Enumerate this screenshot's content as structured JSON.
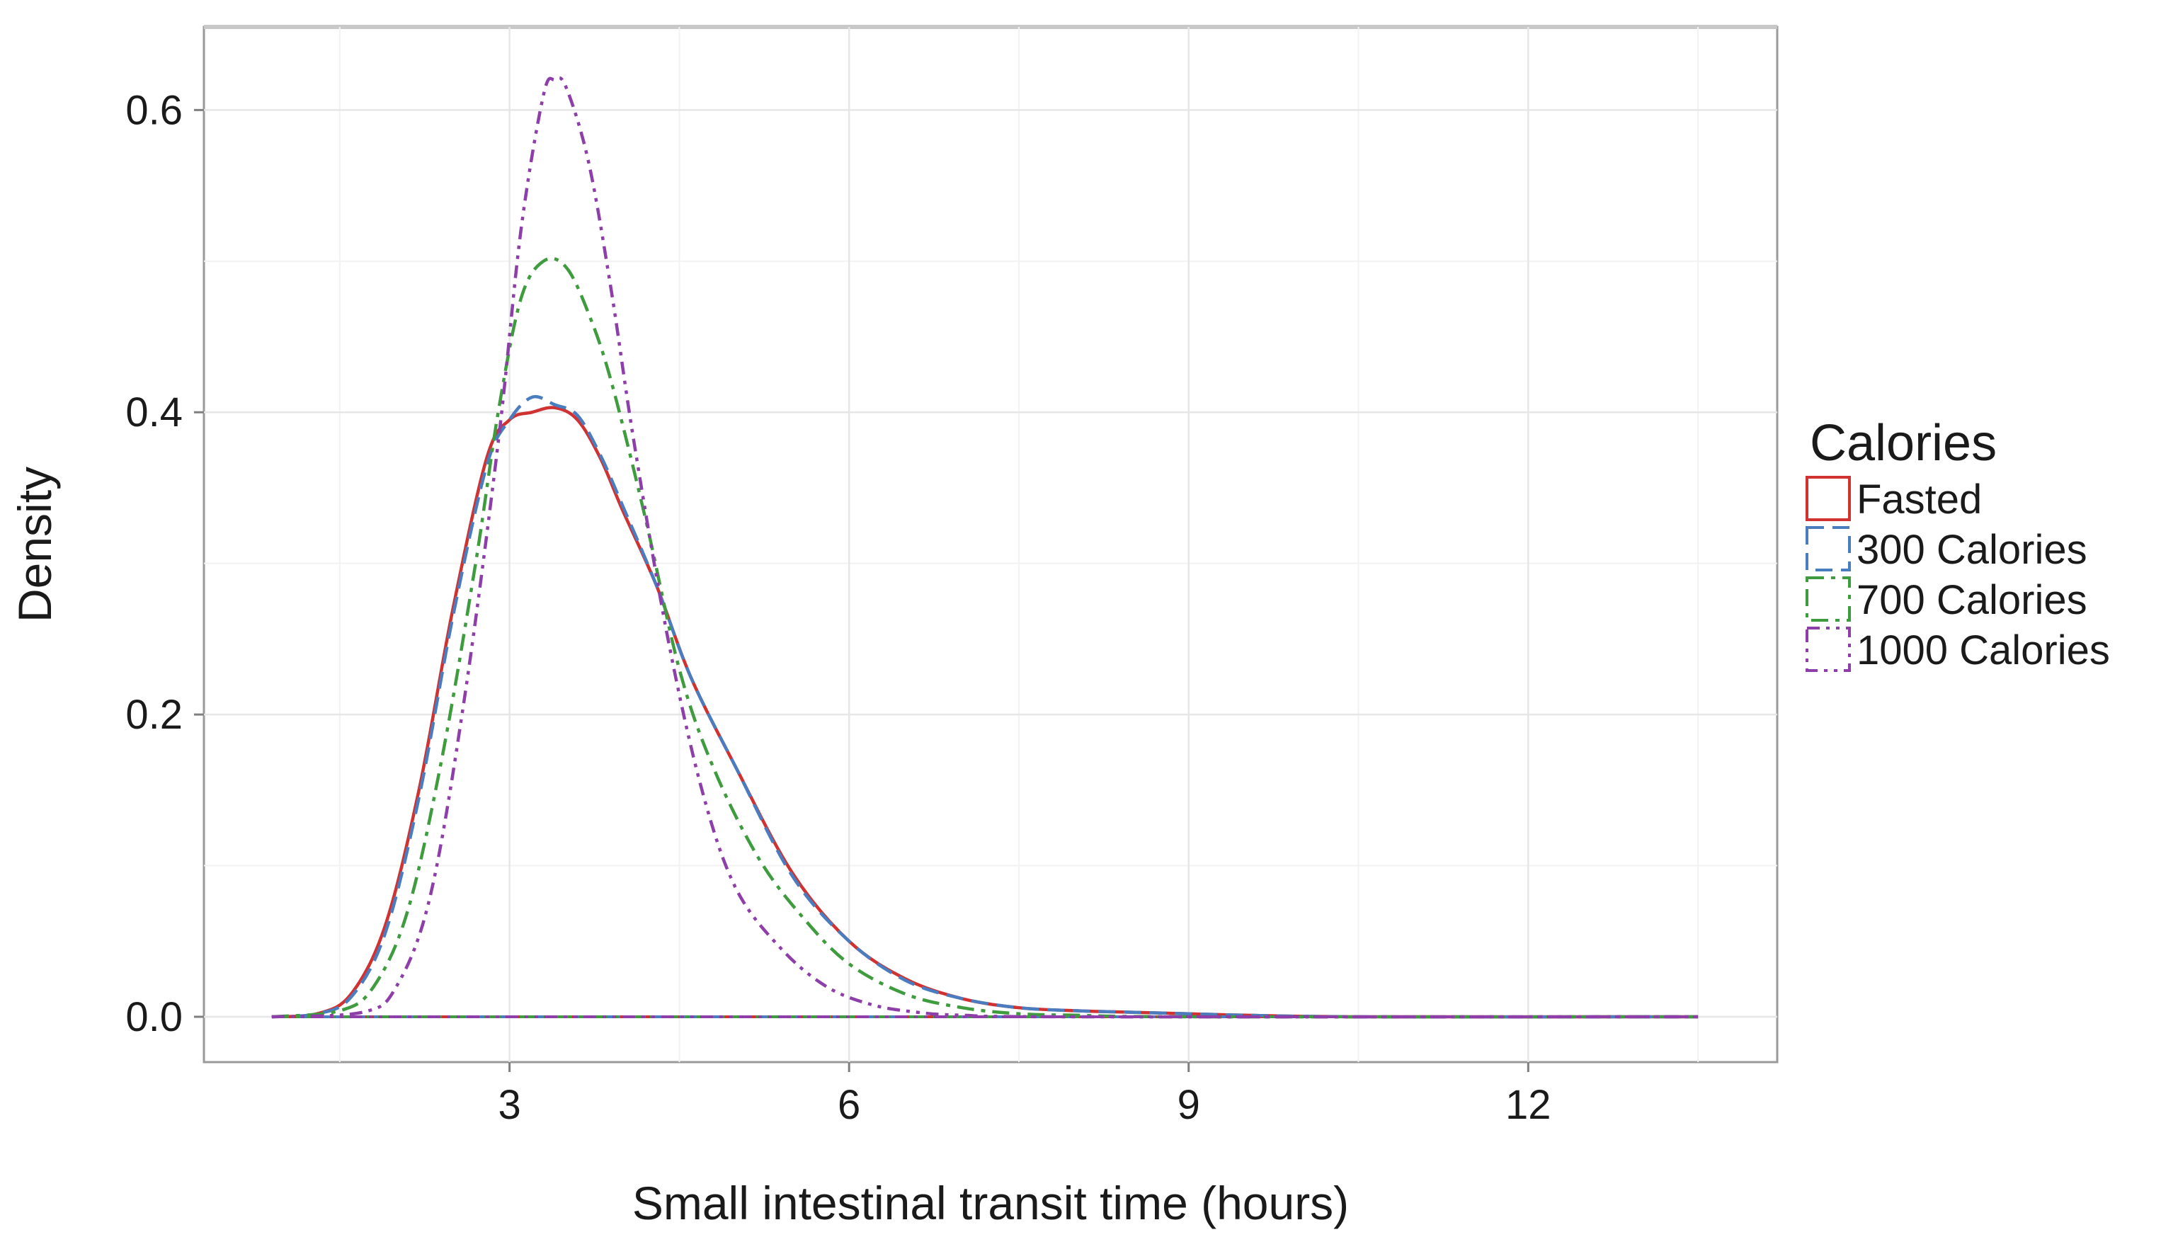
{
  "chart_data": {
    "type": "line",
    "title": "",
    "xlabel": "Small intestinal transit time (hours)",
    "ylabel": "Density",
    "xlim": [
      0.3,
      14.2
    ],
    "ylim": [
      -0.03,
      0.655
    ],
    "x_ticks": [
      3,
      6,
      9,
      12
    ],
    "x_tick_labels": [
      "3",
      "6",
      "9",
      "12"
    ],
    "y_ticks": [
      0.0,
      0.2,
      0.4,
      0.6
    ],
    "y_tick_labels": [
      "0.0",
      "0.2",
      "0.4",
      "0.6"
    ],
    "grid": true,
    "legend": {
      "title": "Calories",
      "position": "right"
    },
    "series": [
      {
        "name": "Fasted",
        "color": "#d03232",
        "dash": "solid",
        "points": [
          [
            0.9,
            0
          ],
          [
            1.3,
            0.002
          ],
          [
            1.6,
            0.015
          ],
          [
            1.9,
            0.06
          ],
          [
            2.2,
            0.15
          ],
          [
            2.5,
            0.27
          ],
          [
            2.8,
            0.37
          ],
          [
            3.0,
            0.395
          ],
          [
            3.2,
            0.4
          ],
          [
            3.4,
            0.403
          ],
          [
            3.6,
            0.395
          ],
          [
            3.8,
            0.37
          ],
          [
            4.0,
            0.335
          ],
          [
            4.3,
            0.285
          ],
          [
            4.6,
            0.225
          ],
          [
            5.0,
            0.165
          ],
          [
            5.5,
            0.095
          ],
          [
            6.0,
            0.05
          ],
          [
            6.5,
            0.025
          ],
          [
            7.0,
            0.012
          ],
          [
            7.5,
            0.006
          ],
          [
            8.0,
            0.004
          ],
          [
            8.5,
            0.003
          ],
          [
            9.0,
            0.002
          ],
          [
            9.5,
            0.001
          ],
          [
            10.5,
            0.0
          ],
          [
            13.5,
            0.0
          ]
        ]
      },
      {
        "name": "300 Calories",
        "color": "#4a7cc0",
        "dash": "long-dash",
        "points": [
          [
            0.9,
            0
          ],
          [
            1.3,
            0.002
          ],
          [
            1.6,
            0.013
          ],
          [
            1.9,
            0.055
          ],
          [
            2.2,
            0.145
          ],
          [
            2.5,
            0.265
          ],
          [
            2.8,
            0.365
          ],
          [
            3.0,
            0.395
          ],
          [
            3.2,
            0.41
          ],
          [
            3.4,
            0.405
          ],
          [
            3.6,
            0.398
          ],
          [
            3.8,
            0.372
          ],
          [
            4.0,
            0.338
          ],
          [
            4.3,
            0.285
          ],
          [
            4.6,
            0.225
          ],
          [
            5.0,
            0.165
          ],
          [
            5.5,
            0.093
          ],
          [
            6.0,
            0.05
          ],
          [
            6.5,
            0.024
          ],
          [
            7.0,
            0.012
          ],
          [
            7.5,
            0.006
          ],
          [
            8.0,
            0.004
          ],
          [
            8.5,
            0.003
          ],
          [
            9.0,
            0.002
          ],
          [
            9.5,
            0.001
          ],
          [
            10.5,
            0.0
          ],
          [
            13.5,
            0.0
          ]
        ]
      },
      {
        "name": "700 Calories",
        "color": "#3e9c3e",
        "dash": "dash-dot",
        "points": [
          [
            0.9,
            0
          ],
          [
            1.5,
            0.004
          ],
          [
            1.8,
            0.02
          ],
          [
            2.1,
            0.07
          ],
          [
            2.4,
            0.17
          ],
          [
            2.7,
            0.3
          ],
          [
            2.9,
            0.4
          ],
          [
            3.1,
            0.475
          ],
          [
            3.3,
            0.5
          ],
          [
            3.5,
            0.496
          ],
          [
            3.7,
            0.465
          ],
          [
            3.9,
            0.42
          ],
          [
            4.2,
            0.33
          ],
          [
            4.5,
            0.23
          ],
          [
            4.8,
            0.165
          ],
          [
            5.2,
            0.105
          ],
          [
            5.6,
            0.065
          ],
          [
            6.0,
            0.035
          ],
          [
            6.5,
            0.015
          ],
          [
            7.0,
            0.006
          ],
          [
            7.5,
            0.002
          ],
          [
            8.0,
            0.001
          ],
          [
            9.0,
            0.0
          ],
          [
            13.5,
            0.0
          ]
        ]
      },
      {
        "name": "1000 Calories",
        "color": "#8e3ea8",
        "dash": "dash-dot-dot",
        "points": [
          [
            0.9,
            0
          ],
          [
            1.7,
            0.003
          ],
          [
            2.0,
            0.02
          ],
          [
            2.3,
            0.08
          ],
          [
            2.6,
            0.21
          ],
          [
            2.9,
            0.38
          ],
          [
            3.1,
            0.52
          ],
          [
            3.3,
            0.61
          ],
          [
            3.4,
            0.62
          ],
          [
            3.5,
            0.615
          ],
          [
            3.7,
            0.565
          ],
          [
            3.9,
            0.48
          ],
          [
            4.1,
            0.38
          ],
          [
            4.4,
            0.25
          ],
          [
            4.7,
            0.15
          ],
          [
            5.0,
            0.085
          ],
          [
            5.4,
            0.045
          ],
          [
            5.8,
            0.02
          ],
          [
            6.2,
            0.008
          ],
          [
            6.6,
            0.003
          ],
          [
            7.0,
            0.001
          ],
          [
            8.0,
            0.0
          ],
          [
            13.5,
            0.0
          ]
        ]
      }
    ]
  }
}
